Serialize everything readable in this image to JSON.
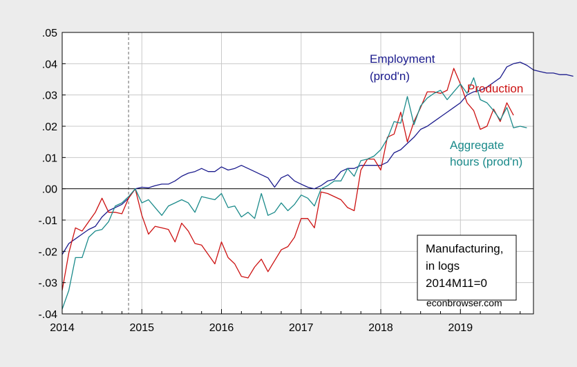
{
  "chart_data": {
    "type": "line",
    "x_range": [
      2014.0,
      2019.917
    ],
    "ylim": [
      -0.04,
      0.05
    ],
    "grid": true,
    "x_ticks": [
      "2014",
      "2015",
      "2016",
      "2017",
      "2018",
      "2019"
    ],
    "y_ticks": [
      {
        "value": 0.05,
        "label": ".05"
      },
      {
        "value": 0.04,
        "label": ".04"
      },
      {
        "value": 0.03,
        "label": ".03"
      },
      {
        "value": 0.02,
        "label": ".02"
      },
      {
        "value": 0.01,
        "label": ".01"
      },
      {
        "value": 0.0,
        "label": ".00"
      },
      {
        "value": -0.01,
        "label": "-.01"
      },
      {
        "value": -0.02,
        "label": "-.02"
      },
      {
        "value": -0.03,
        "label": "-.03"
      },
      {
        "value": -0.04,
        "label": "-.04"
      }
    ],
    "reference_line": {
      "x": "2014M11",
      "style": "dashed"
    },
    "series": [
      {
        "name": "Employment (prod'n)",
        "color": "#1a1a8c",
        "start": "2014M01",
        "values": [
          -0.021,
          -0.0175,
          -0.016,
          -0.0145,
          -0.013,
          -0.012,
          -0.009,
          -0.007,
          -0.006,
          -0.005,
          -0.003,
          0.0,
          0.0005,
          0.0003,
          0.001,
          0.0015,
          0.0015,
          0.0025,
          0.004,
          0.005,
          0.0055,
          0.0065,
          0.0055,
          0.0055,
          0.007,
          0.006,
          0.0065,
          0.0075,
          0.0065,
          0.0055,
          0.0045,
          0.0035,
          0.0005,
          0.0035,
          0.0045,
          0.0025,
          0.0015,
          0.0005,
          0.0,
          0.001,
          0.0025,
          0.003,
          0.0055,
          0.0065,
          0.0065,
          0.0075,
          0.0075,
          0.0075,
          0.0075,
          0.0085,
          0.0115,
          0.0125,
          0.0145,
          0.0165,
          0.019,
          0.02,
          0.0215,
          0.023,
          0.0245,
          0.026,
          0.0275,
          0.03,
          0.031,
          0.0315,
          0.0325,
          0.034,
          0.0355,
          0.039,
          0.04,
          0.0405,
          0.0395,
          0.038,
          0.0375,
          0.037,
          0.037,
          0.0365,
          0.0365,
          0.036
        ]
      },
      {
        "name": "Production",
        "color": "#cc1111",
        "start": "2014M01",
        "values": [
          -0.0325,
          -0.0205,
          -0.0125,
          -0.0135,
          -0.0105,
          -0.0075,
          -0.003,
          -0.0075,
          -0.0075,
          -0.008,
          -0.003,
          0.0,
          -0.0085,
          -0.0145,
          -0.012,
          -0.0125,
          -0.013,
          -0.017,
          -0.011,
          -0.0135,
          -0.0175,
          -0.018,
          -0.021,
          -0.024,
          -0.017,
          -0.022,
          -0.024,
          -0.028,
          -0.0285,
          -0.025,
          -0.0225,
          -0.0265,
          -0.023,
          -0.0195,
          -0.0185,
          -0.0155,
          -0.0095,
          -0.0095,
          -0.0125,
          -0.001,
          -0.0015,
          -0.0025,
          -0.0035,
          -0.006,
          -0.007,
          0.006,
          0.0095,
          0.0095,
          0.006,
          0.0165,
          0.0175,
          0.0245,
          0.015,
          0.0215,
          0.026,
          0.031,
          0.031,
          0.0305,
          0.0315,
          0.0385,
          0.0335,
          0.0275,
          0.025,
          0.019,
          0.02,
          0.0255,
          0.0215,
          0.0275,
          0.0235
        ]
      },
      {
        "name": "Aggregate hours (prod'n)",
        "color": "#1a8a8a",
        "start": "2014M01",
        "values": [
          -0.0385,
          -0.0325,
          -0.022,
          -0.022,
          -0.0155,
          -0.0135,
          -0.013,
          -0.0105,
          -0.0055,
          -0.0045,
          -0.0025,
          0.0,
          -0.0045,
          -0.0035,
          -0.006,
          -0.0085,
          -0.0055,
          -0.0045,
          -0.0035,
          -0.0045,
          -0.0075,
          -0.0025,
          -0.003,
          -0.0035,
          -0.0015,
          -0.006,
          -0.0055,
          -0.009,
          -0.0075,
          -0.0095,
          -0.0015,
          -0.0085,
          -0.0075,
          -0.0045,
          -0.007,
          -0.005,
          -0.002,
          -0.003,
          -0.0055,
          0.0,
          0.001,
          0.0025,
          0.0025,
          0.0065,
          0.004,
          0.009,
          0.0095,
          0.0105,
          0.0125,
          0.016,
          0.0215,
          0.021,
          0.0295,
          0.0205,
          0.0265,
          0.029,
          0.0305,
          0.0315,
          0.0285,
          0.031,
          0.0335,
          0.0305,
          0.0355,
          0.0285,
          0.0275,
          0.025,
          0.022,
          0.026,
          0.0195,
          0.02,
          0.0195
        ]
      }
    ],
    "annotations": {
      "employment": [
        "Employment",
        "(prod'n)"
      ],
      "production": "Production",
      "hours": [
        "Aggregate",
        "hours (prod'n)"
      ]
    },
    "legend_box": [
      "Manufacturing,",
      "in logs",
      "2014M11=0"
    ],
    "credit": "econbrowser.com"
  }
}
